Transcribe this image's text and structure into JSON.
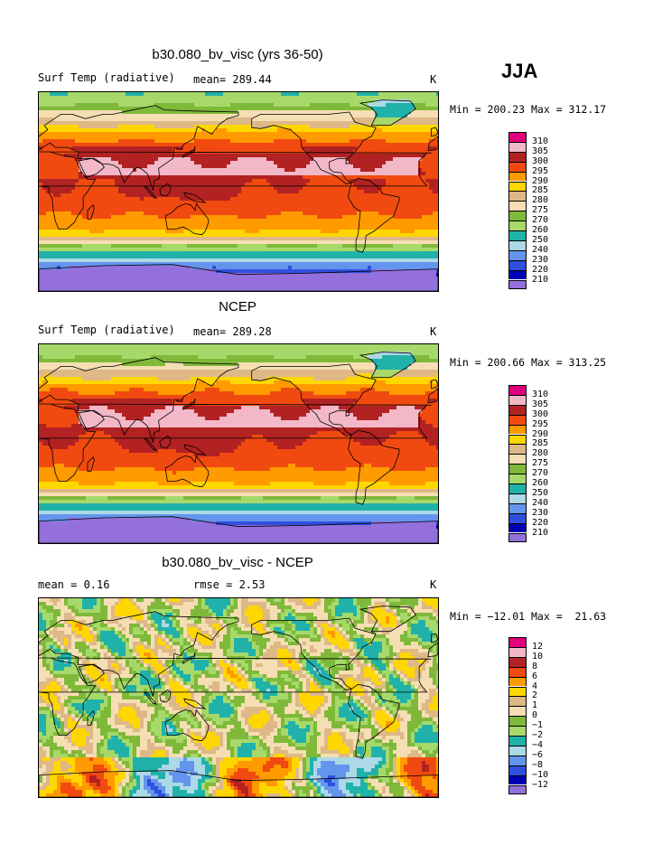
{
  "season": "JJA",
  "panels": [
    {
      "id": "model",
      "title": "b30.080_bv_visc (yrs 36-50)",
      "left_label": "Surf Temp (radiative)",
      "center_label": "mean= 289.44",
      "units": "K",
      "minmax": "Min = 200.23 Max = 312.17",
      "levels": [
        "310",
        "305",
        "300",
        "295",
        "290",
        "285",
        "280",
        "275",
        "270",
        "260",
        "250",
        "240",
        "230",
        "220",
        "210"
      ],
      "palette": [
        "#e0007e",
        "#f2b8c8",
        "#b22222",
        "#f04a10",
        "#ff9a00",
        "#ffd700",
        "#deb887",
        "#f5deb3",
        "#7fb93a",
        "#a6d96a",
        "#20b2aa",
        "#add8e6",
        "#6495ed",
        "#2f4fdf",
        "#0000b4",
        "#9370db"
      ],
      "warm_shift": 0
    },
    {
      "id": "obs",
      "title": "NCEP",
      "left_label": "Surf Temp (radiative)",
      "center_label": "mean= 289.28",
      "units": "K",
      "minmax": "Min = 200.66 Max = 313.25",
      "levels": [
        "310",
        "305",
        "300",
        "295",
        "290",
        "285",
        "280",
        "275",
        "270",
        "260",
        "250",
        "240",
        "230",
        "220",
        "210"
      ],
      "palette": [
        "#e0007e",
        "#f2b8c8",
        "#b22222",
        "#f04a10",
        "#ff9a00",
        "#ffd700",
        "#deb887",
        "#f5deb3",
        "#7fb93a",
        "#a6d96a",
        "#20b2aa",
        "#add8e6",
        "#6495ed",
        "#2f4fdf",
        "#0000b4",
        "#9370db"
      ],
      "warm_shift": 0.15
    },
    {
      "id": "diff",
      "title": "b30.080_bv_visc - NCEP",
      "left_label": "mean =    0.16",
      "center_label": "rmse =    2.53",
      "units": "K",
      "minmax": "Min = −12.01 Max =  21.63",
      "levels": [
        "12",
        "10",
        "8",
        "6",
        "4",
        "2",
        "1",
        "0",
        "−1",
        "−2",
        "−4",
        "−6",
        "−8",
        "−10",
        "−12"
      ],
      "palette": [
        "#e0007e",
        "#f2b8c8",
        "#b22222",
        "#f04a10",
        "#ff9a00",
        "#ffd700",
        "#deb887",
        "#f5deb3",
        "#7fb93a",
        "#a6d96a",
        "#20b2aa",
        "#add8e6",
        "#6495ed",
        "#2f4fdf",
        "#0000b4",
        "#9370db"
      ],
      "warm_shift": 0
    }
  ]
}
